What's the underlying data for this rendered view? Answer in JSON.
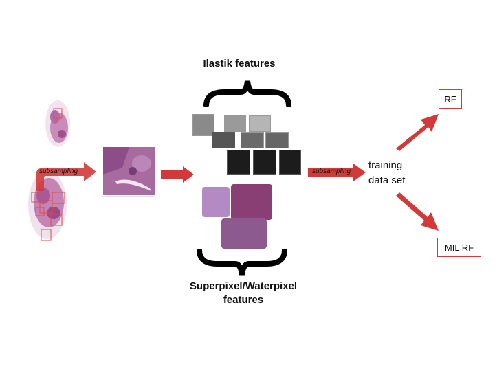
{
  "diagram": {
    "ilastik_label": "Ilastik features",
    "superpixel_label_line1": "Superpixel/Waterpixel",
    "superpixel_label_line2": "features",
    "subsampling_left": "subsampling",
    "subsampling_right": "subsampling",
    "training_line1": "training",
    "training_line2": "data set",
    "rf_label": "RF",
    "milrf_label": "MIL RF",
    "colors": {
      "arrow": "#d23a3a",
      "box_border": "#d23a3a",
      "tissue": "#a0508f"
    }
  }
}
